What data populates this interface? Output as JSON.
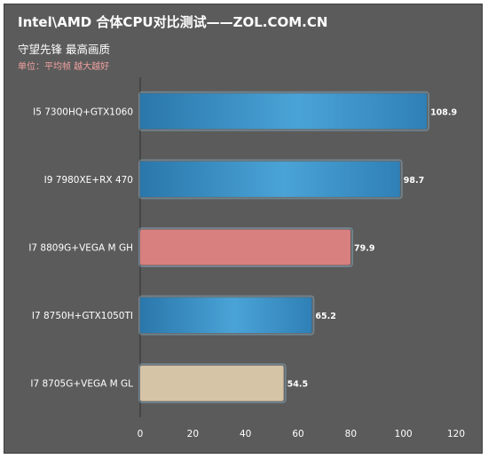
{
  "header": {
    "title": "Intel\\AMD 合体CPU对比测试——ZOL.COM.CN",
    "subtitle": "守望先锋  最高画质",
    "unit_note": "单位：平均帧   越大越好"
  },
  "colors": {
    "background": "#5b5b5b",
    "blue_bar": "#3a8fc4",
    "pink_bar": "#d88080",
    "beige_bar": "#d6c4a6",
    "axis_text": "#ffffff"
  },
  "chart_data": {
    "type": "bar",
    "orientation": "horizontal",
    "categories": [
      "I5 7300HQ+GTX1060",
      "I9 7980XE+RX 470",
      "I7 8809G+VEGA M GH",
      "I7 8750H+GTX1050TI",
      "I7 8705G+VEGA M GL"
    ],
    "values": [
      108.9,
      98.7,
      79.9,
      65.2,
      54.5
    ],
    "bar_colors": [
      "#3a8fc4",
      "#3a8fc4",
      "#d88080",
      "#3a8fc4",
      "#d6c4a6"
    ],
    "xlim": [
      0,
      120
    ],
    "xticks": [
      0,
      20,
      40,
      60,
      80,
      100,
      120
    ],
    "grid": false,
    "legend": "none"
  }
}
